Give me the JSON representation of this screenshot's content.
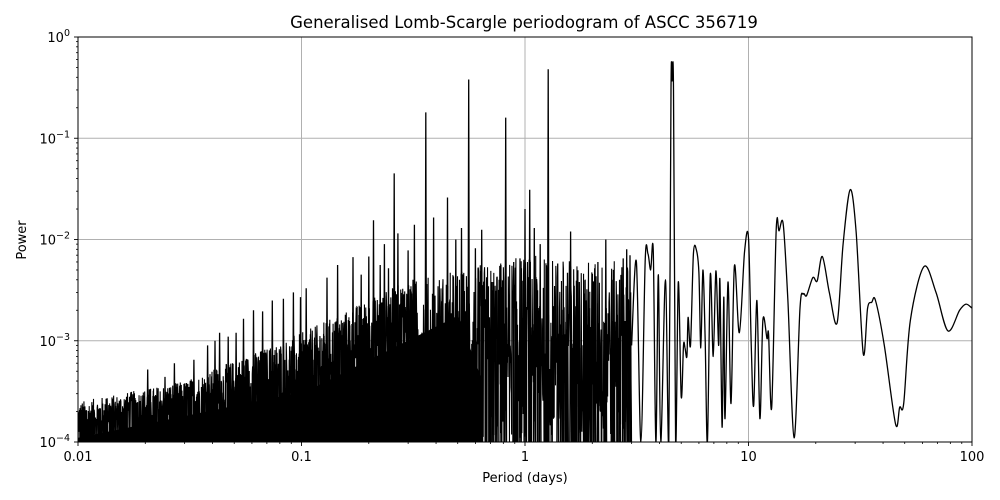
{
  "chart_data": {
    "type": "line",
    "title": "Generalised Lomb-Scargle periodogram of ASCC 356719",
    "xlabel": "Period (days)",
    "ylabel": "Power",
    "xscale": "log",
    "yscale": "log",
    "xlim": [
      0.01,
      100
    ],
    "ylim": [
      0.0001,
      1
    ],
    "grid": true,
    "legend": null,
    "line_color": "#000000",
    "grid_color": "#b0b0b0",
    "x_ticks": [
      {
        "value": 0.01,
        "label": "0.01"
      },
      {
        "value": 0.1,
        "label": "0.1"
      },
      {
        "value": 1,
        "label": "1"
      },
      {
        "value": 10,
        "label": "10"
      },
      {
        "value": 100,
        "label": "100"
      }
    ],
    "y_ticks": [
      {
        "value": 0.0001,
        "base": "10",
        "exp": "−4"
      },
      {
        "value": 0.001,
        "base": "10",
        "exp": "−3"
      },
      {
        "value": 0.01,
        "base": "10",
        "exp": "−2"
      },
      {
        "value": 0.1,
        "base": "10",
        "exp": "−1"
      },
      {
        "value": 1,
        "base": "10",
        "exp": "0"
      }
    ],
    "notable_peaks": [
      {
        "period": 1.27,
        "power": 0.48
      },
      {
        "period": 0.56,
        "power": 0.38
      },
      {
        "period": 4.55,
        "power": 0.36
      },
      {
        "period": 0.36,
        "power": 0.18
      },
      {
        "period": 0.82,
        "power": 0.16
      },
      {
        "period": 0.26,
        "power": 0.045
      },
      {
        "period": 28.5,
        "power": 0.031
      },
      {
        "period": 14.3,
        "power": 0.014
      },
      {
        "period": 10.0,
        "power": 0.0103
      },
      {
        "period": 21.4,
        "power": 0.0068
      },
      {
        "period": 61,
        "power": 0.0054
      }
    ],
    "noise_envelope": {
      "description": "Dense aliased forest of peaks; upper envelope rises with period",
      "points": [
        {
          "period": 0.01,
          "power": 0.00025
        },
        {
          "period": 0.03,
          "power": 0.0004
        },
        {
          "period": 0.1,
          "power": 0.0012
        },
        {
          "period": 0.3,
          "power": 0.004
        },
        {
          "period": 1.0,
          "power": 0.007
        },
        {
          "period": 3.0,
          "power": 0.006
        }
      ],
      "floor_points": [
        {
          "period": 0.01,
          "power": 0.00012
        },
        {
          "period": 0.1,
          "power": 0.0003
        },
        {
          "period": 0.3,
          "power": 0.0008
        },
        {
          "period": 0.6,
          "power": 0.0001
        }
      ]
    },
    "smooth_curve": [
      {
        "period": 3.0,
        "power": 0.0009
      },
      {
        "period": 3.15,
        "power": 0.006
      },
      {
        "period": 3.3,
        "power": 0.0001
      },
      {
        "period": 3.45,
        "power": 0.0062
      },
      {
        "period": 3.55,
        "power": 0.0072
      },
      {
        "period": 3.65,
        "power": 0.005
      },
      {
        "period": 3.75,
        "power": 0.0075
      },
      {
        "period": 3.85,
        "power": 0.0001
      },
      {
        "period": 3.95,
        "power": 0.0045
      },
      {
        "period": 4.05,
        "power": 0.0001
      },
      {
        "period": 4.25,
        "power": 0.004
      },
      {
        "period": 4.4,
        "power": 0.0001
      },
      {
        "period": 4.5,
        "power": 0.3
      },
      {
        "period": 4.55,
        "power": 0.367
      },
      {
        "period": 4.62,
        "power": 0.3
      },
      {
        "period": 4.72,
        "power": 0.0001
      },
      {
        "period": 4.85,
        "power": 0.0038
      },
      {
        "period": 5.0,
        "power": 0.00028
      },
      {
        "period": 5.12,
        "power": 0.0009
      },
      {
        "period": 5.2,
        "power": 0.00085
      },
      {
        "period": 5.3,
        "power": 0.0007
      },
      {
        "period": 5.37,
        "power": 0.0017
      },
      {
        "period": 5.5,
        "power": 0.0009
      },
      {
        "period": 5.67,
        "power": 0.0072
      },
      {
        "period": 5.85,
        "power": 0.0078
      },
      {
        "period": 6.0,
        "power": 0.0047
      },
      {
        "period": 6.12,
        "power": 0.00085
      },
      {
        "period": 6.25,
        "power": 0.005
      },
      {
        "period": 6.4,
        "power": 0.001
      },
      {
        "period": 6.55,
        "power": 0.0001
      },
      {
        "period": 6.75,
        "power": 0.0045
      },
      {
        "period": 6.95,
        "power": 0.0007
      },
      {
        "period": 7.15,
        "power": 0.0049
      },
      {
        "period": 7.35,
        "power": 0.0009
      },
      {
        "period": 7.45,
        "power": 0.004
      },
      {
        "period": 7.62,
        "power": 0.00014
      },
      {
        "period": 7.75,
        "power": 0.0027
      },
      {
        "period": 7.85,
        "power": 0.00017
      },
      {
        "period": 8.1,
        "power": 0.0038
      },
      {
        "period": 8.35,
        "power": 0.00024
      },
      {
        "period": 8.65,
        "power": 0.0055
      },
      {
        "period": 9.1,
        "power": 0.0012
      },
      {
        "period": 9.6,
        "power": 0.0075
      },
      {
        "period": 10.0,
        "power": 0.0103
      },
      {
        "period": 10.3,
        "power": 0.0008
      },
      {
        "period": 10.55,
        "power": 0.00023
      },
      {
        "period": 10.9,
        "power": 0.0025
      },
      {
        "period": 11.25,
        "power": 0.00017
      },
      {
        "period": 11.6,
        "power": 0.0016
      },
      {
        "period": 12.1,
        "power": 0.00105
      },
      {
        "period": 12.3,
        "power": 0.00115
      },
      {
        "period": 12.7,
        "power": 0.00022
      },
      {
        "period": 13.3,
        "power": 0.0125
      },
      {
        "period": 13.7,
        "power": 0.0122
      },
      {
        "period": 14.3,
        "power": 0.0142
      },
      {
        "period": 15.0,
        "power": 0.0025
      },
      {
        "period": 16.0,
        "power": 0.00011
      },
      {
        "period": 17.0,
        "power": 0.0021
      },
      {
        "period": 17.6,
        "power": 0.0029
      },
      {
        "period": 18.2,
        "power": 0.0028
      },
      {
        "period": 19.4,
        "power": 0.0042
      },
      {
        "period": 20.3,
        "power": 0.0039
      },
      {
        "period": 21.4,
        "power": 0.0068
      },
      {
        "period": 23.0,
        "power": 0.003
      },
      {
        "period": 24.9,
        "power": 0.0015
      },
      {
        "period": 26.5,
        "power": 0.009
      },
      {
        "period": 28.5,
        "power": 0.031
      },
      {
        "period": 30.3,
        "power": 0.012
      },
      {
        "period": 32.6,
        "power": 0.00075
      },
      {
        "period": 34.1,
        "power": 0.0021
      },
      {
        "period": 35.6,
        "power": 0.0024
      },
      {
        "period": 37.0,
        "power": 0.0025
      },
      {
        "period": 40.5,
        "power": 0.0009
      },
      {
        "period": 45.5,
        "power": 0.00015
      },
      {
        "period": 47.5,
        "power": 0.00022
      },
      {
        "period": 49.5,
        "power": 0.00024
      },
      {
        "period": 53.0,
        "power": 0.0016
      },
      {
        "period": 61.0,
        "power": 0.0054
      },
      {
        "period": 69.0,
        "power": 0.003
      },
      {
        "period": 78.0,
        "power": 0.00125
      },
      {
        "period": 88.0,
        "power": 0.002
      },
      {
        "period": 94.0,
        "power": 0.0023
      },
      {
        "period": 100.0,
        "power": 0.0021
      }
    ],
    "alias_spikes": [
      {
        "period": 0.0135,
        "power": 0.00027
      },
      {
        "period": 0.0165,
        "power": 0.00028
      },
      {
        "period": 0.0195,
        "power": 0.00029
      },
      {
        "period": 0.0205,
        "power": 0.00052
      },
      {
        "period": 0.0245,
        "power": 0.00044
      },
      {
        "period": 0.027,
        "power": 0.0006
      },
      {
        "period": 0.033,
        "power": 0.00065
      },
      {
        "period": 0.038,
        "power": 0.0009
      },
      {
        "period": 0.041,
        "power": 0.001
      },
      {
        "period": 0.043,
        "power": 0.0012
      },
      {
        "period": 0.047,
        "power": 0.0011
      },
      {
        "period": 0.051,
        "power": 0.0012
      },
      {
        "period": 0.055,
        "power": 0.00165
      },
      {
        "period": 0.061,
        "power": 0.002
      },
      {
        "period": 0.067,
        "power": 0.00195
      },
      {
        "period": 0.074,
        "power": 0.0025
      },
      {
        "period": 0.083,
        "power": 0.0026
      },
      {
        "period": 0.092,
        "power": 0.003
      },
      {
        "period": 0.099,
        "power": 0.0027
      },
      {
        "period": 0.105,
        "power": 0.0033
      },
      {
        "period": 0.13,
        "power": 0.0042
      },
      {
        "period": 0.145,
        "power": 0.0056
      },
      {
        "period": 0.17,
        "power": 0.0067
      },
      {
        "period": 0.185,
        "power": 0.0045
      },
      {
        "period": 0.2,
        "power": 0.0068
      },
      {
        "period": 0.21,
        "power": 0.0155
      },
      {
        "period": 0.225,
        "power": 0.0056
      },
      {
        "period": 0.235,
        "power": 0.009
      },
      {
        "period": 0.245,
        "power": 0.0052
      },
      {
        "period": 0.26,
        "power": 0.045
      },
      {
        "period": 0.27,
        "power": 0.0115
      },
      {
        "period": 0.3,
        "power": 0.0078
      },
      {
        "period": 0.32,
        "power": 0.014
      },
      {
        "period": 0.36,
        "power": 0.18
      },
      {
        "period": 0.39,
        "power": 0.0165
      },
      {
        "period": 0.45,
        "power": 0.026
      },
      {
        "period": 0.49,
        "power": 0.01
      },
      {
        "period": 0.52,
        "power": 0.013
      },
      {
        "period": 0.56,
        "power": 0.38
      },
      {
        "period": 0.6,
        "power": 0.0082
      },
      {
        "period": 0.64,
        "power": 0.0125
      },
      {
        "period": 0.72,
        "power": 0.0038
      },
      {
        "period": 0.75,
        "power": 0.0043
      },
      {
        "period": 0.78,
        "power": 0.0056
      },
      {
        "period": 0.82,
        "power": 0.16
      },
      {
        "period": 0.89,
        "power": 0.006
      },
      {
        "period": 0.95,
        "power": 0.0065
      },
      {
        "period": 1.0,
        "power": 0.02
      },
      {
        "period": 1.05,
        "power": 0.031
      },
      {
        "period": 1.1,
        "power": 0.013
      },
      {
        "period": 1.17,
        "power": 0.009
      },
      {
        "period": 1.27,
        "power": 0.48
      },
      {
        "period": 1.4,
        "power": 0.0058
      },
      {
        "period": 1.55,
        "power": 0.0047
      },
      {
        "period": 1.6,
        "power": 0.012
      },
      {
        "period": 1.66,
        "power": 0.0035
      },
      {
        "period": 1.75,
        "power": 0.0038
      },
      {
        "period": 1.85,
        "power": 0.0025
      },
      {
        "period": 1.95,
        "power": 0.0021
      },
      {
        "period": 2.05,
        "power": 0.0052
      },
      {
        "period": 2.12,
        "power": 0.006
      },
      {
        "period": 2.3,
        "power": 0.01
      },
      {
        "period": 2.45,
        "power": 0.004
      },
      {
        "period": 2.5,
        "power": 0.0028
      },
      {
        "period": 2.65,
        "power": 0.004
      },
      {
        "period": 2.75,
        "power": 0.0065
      },
      {
        "period": 2.85,
        "power": 0.008
      },
      {
        "period": 2.95,
        "power": 0.007
      }
    ]
  }
}
